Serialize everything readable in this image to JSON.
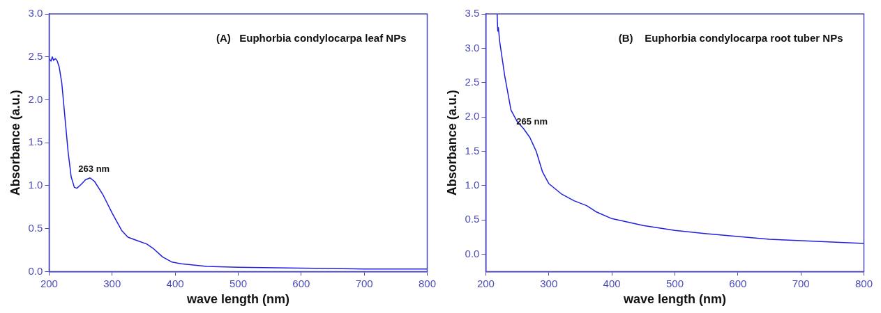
{
  "chart_data": [
    {
      "type": "line",
      "title": "(A)   Euphorbia condylocarpa leaf NPs",
      "xlabel": "wave length (nm)",
      "ylabel": "Absorbance (a.u.)",
      "marker": "none",
      "xlim": [
        200,
        800
      ],
      "xticks": [
        200,
        300,
        400,
        500,
        600,
        700,
        800
      ],
      "ylim": [
        0,
        3
      ],
      "yticks": [
        {
          "value": 0,
          "label": "0.0"
        },
        0.5,
        {
          "value": 1,
          "label": "1.0"
        },
        1.5,
        {
          "value": 2,
          "label": "2.0"
        },
        2.5,
        {
          "value": 3,
          "label": "3.0"
        }
      ],
      "annotations": [
        {
          "text": "263 nm",
          "x": 263,
          "y": 1.09
        }
      ],
      "series": [
        {
          "color": "#1f1fe0",
          "x": [
            200,
            203,
            205,
            207,
            210,
            213,
            216,
            220,
            225,
            230,
            235,
            240,
            244,
            250,
            258,
            265,
            272,
            285,
            300,
            315,
            325,
            340,
            355,
            365,
            380,
            395,
            410,
            450,
            500,
            600,
            700,
            800
          ],
          "values": [
            2.48,
            2.45,
            2.5,
            2.46,
            2.48,
            2.45,
            2.38,
            2.2,
            1.8,
            1.4,
            1.1,
            0.98,
            0.97,
            1.01,
            1.07,
            1.09,
            1.05,
            0.9,
            0.68,
            0.48,
            0.4,
            0.36,
            0.32,
            0.27,
            0.17,
            0.11,
            0.09,
            0.06,
            0.05,
            0.04,
            0.03,
            0.03
          ]
        }
      ]
    },
    {
      "type": "line",
      "title": "(B)    Euphorbia condylocarpa root tuber NPs",
      "xlabel": "wave length (nm)",
      "ylabel": "Absorbance (a.u.)",
      "marker": "none",
      "xlim": [
        200,
        800
      ],
      "xticks": [
        200,
        300,
        400,
        500,
        600,
        700,
        800
      ],
      "ylim": [
        -0.25,
        3.5
      ],
      "yticks": [
        {
          "value": 0,
          "label": "0.0"
        },
        0.5,
        {
          "value": 1,
          "label": "1.0"
        },
        1.5,
        {
          "value": 2,
          "label": "2.0"
        },
        2.5,
        {
          "value": 3,
          "label": "3.0"
        },
        3.5
      ],
      "annotations": [
        {
          "text": "265 nm",
          "x": 265,
          "y": 1.8
        }
      ],
      "series": [
        {
          "color": "#1f1fe0",
          "x": [
            218,
            219,
            220,
            222,
            230,
            240,
            250,
            260,
            270,
            280,
            290,
            300,
            320,
            340,
            360,
            375,
            400,
            450,
            500,
            550,
            600,
            650,
            700,
            750,
            800
          ],
          "values": [
            3.5,
            3.25,
            3.3,
            3.1,
            2.6,
            2.1,
            1.93,
            1.83,
            1.7,
            1.5,
            1.2,
            1.03,
            0.88,
            0.78,
            0.71,
            0.62,
            0.52,
            0.42,
            0.35,
            0.3,
            0.26,
            0.22,
            0.2,
            0.18,
            0.16
          ]
        }
      ]
    }
  ]
}
